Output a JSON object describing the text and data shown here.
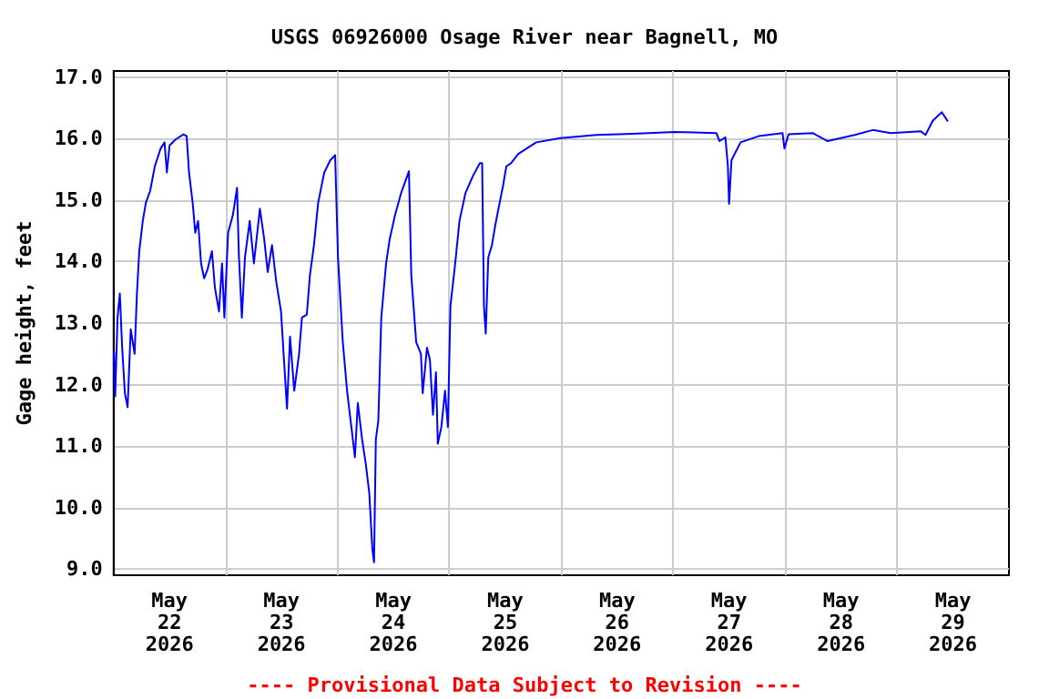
{
  "chart_data": {
    "type": "line",
    "title": "USGS 06926000 Osage River near Bagnell, MO",
    "ylabel": "Gage height, feet",
    "annotations": [
      "---- Provisional Data Subject to Revision ----"
    ],
    "xlim": [
      "2026-05-22T00:00",
      "2026-05-30T00:00"
    ],
    "ylim": [
      8.9,
      17.1
    ],
    "yticks": [
      {
        "value": 9,
        "label": "9.0"
      },
      {
        "value": 10,
        "label": "10.0"
      },
      {
        "value": 11,
        "label": "11.0"
      },
      {
        "value": 12,
        "label": "12.0"
      },
      {
        "value": 13,
        "label": "13.0"
      },
      {
        "value": 14,
        "label": "14.0"
      },
      {
        "value": 15,
        "label": "15.0"
      },
      {
        "value": 16,
        "label": "16.0"
      },
      {
        "value": 17,
        "label": "17.0"
      }
    ],
    "xticks": [
      {
        "value": "2026-05-23T00:00",
        "label": null
      },
      {
        "value": "2026-05-24T00:00",
        "label": null
      },
      {
        "value": "2026-05-25T00:00",
        "label": null
      },
      {
        "value": "2026-05-26T00:00",
        "label": null
      },
      {
        "value": "2026-05-27T00:00",
        "label": null
      },
      {
        "value": "2026-05-28T00:00",
        "label": null
      },
      {
        "value": "2026-05-29T00:00",
        "label": null
      },
      {
        "value": "2026-05-22T12:00",
        "label": "May\n22\n2026"
      },
      {
        "value": "2026-05-23T12:00",
        "label": "May\n23\n2026"
      },
      {
        "value": "2026-05-24T12:00",
        "label": "May\n24\n2026"
      },
      {
        "value": "2026-05-25T12:00",
        "label": "May\n25\n2026"
      },
      {
        "value": "2026-05-26T12:00",
        "label": "May\n26\n2026"
      },
      {
        "value": "2026-05-27T12:00",
        "label": "May\n27\n2026"
      },
      {
        "value": "2026-05-28T12:00",
        "label": "May\n28\n2026"
      },
      {
        "value": "2026-05-29T12:00",
        "label": "May\n29\n2026"
      }
    ],
    "grid": true,
    "marker": "none",
    "line_style": "solid",
    "series": [
      {
        "color": "#0000ff",
        "x": [
          "2026-05-22T00:05",
          "2026-05-22T00:20",
          "2026-05-22T00:50",
          "2026-05-22T01:20",
          "2026-05-22T01:50",
          "2026-05-22T02:25",
          "2026-05-22T03:00",
          "2026-05-22T03:40",
          "2026-05-22T04:30",
          "2026-05-22T05:00",
          "2026-05-22T05:30",
          "2026-05-22T06:15",
          "2026-05-22T06:55",
          "2026-05-22T07:50",
          "2026-05-22T08:50",
          "2026-05-22T10:05",
          "2026-05-22T10:55",
          "2026-05-22T11:25",
          "2026-05-22T12:00",
          "2026-05-22T13:20",
          "2026-05-22T15:00",
          "2026-05-22T15:40",
          "2026-05-22T16:10",
          "2026-05-22T16:57",
          "2026-05-22T17:30",
          "2026-05-22T18:07",
          "2026-05-22T18:45",
          "2026-05-22T19:25",
          "2026-05-22T20:10",
          "2026-05-22T21:05",
          "2026-05-22T21:43",
          "2026-05-22T22:36",
          "2026-05-22T23:15",
          "2026-05-22T23:45",
          "2026-05-23T00:33",
          "2026-05-23T01:35",
          "2026-05-23T02:28",
          "2026-05-23T02:51",
          "2026-05-23T03:30",
          "2026-05-23T04:10",
          "2026-05-23T05:11",
          "2026-05-23T06:05",
          "2026-05-23T07:22",
          "2026-05-23T08:17",
          "2026-05-23T09:03",
          "2026-05-23T09:58",
          "2026-05-23T10:52",
          "2026-05-23T11:54",
          "2026-05-23T12:32",
          "2026-05-23T13:11",
          "2026-05-23T13:50",
          "2026-05-23T14:44",
          "2026-05-23T15:46",
          "2026-05-23T16:23",
          "2026-05-23T17:26",
          "2026-05-23T18:06",
          "2026-05-23T18:58",
          "2026-05-23T19:52",
          "2026-05-23T21:10",
          "2026-05-23T22:28",
          "2026-05-23T23:30",
          "2026-05-24T00:07",
          "2026-05-24T01:09",
          "2026-05-24T02:04",
          "2026-05-24T02:59",
          "2026-05-24T03:45",
          "2026-05-24T04:22",
          "2026-05-24T05:17",
          "2026-05-24T06:04",
          "2026-05-24T06:50",
          "2026-05-24T07:28",
          "2026-05-24T07:51",
          "2026-05-24T08:14",
          "2026-05-24T08:46",
          "2026-05-24T09:24",
          "2026-05-24T10:26",
          "2026-05-24T11:13",
          "2026-05-24T12:22",
          "2026-05-24T13:38",
          "2026-05-24T15:20",
          "2026-05-24T15:50",
          "2026-05-24T16:53",
          "2026-05-24T17:54",
          "2026-05-24T18:17",
          "2026-05-24T19:12",
          "2026-05-24T19:50",
          "2026-05-24T20:29",
          "2026-05-24T21:08",
          "2026-05-24T21:31",
          "2026-05-24T22:17",
          "2026-05-24T23:04",
          "2026-05-24T23:41",
          "2026-05-25T00:14",
          "2026-05-25T01:15",
          "2026-05-25T02:10",
          "2026-05-25T03:26",
          "2026-05-25T05:06",
          "2026-05-25T06:32",
          "2026-05-25T07:02",
          "2026-05-25T07:25",
          "2026-05-25T07:48",
          "2026-05-25T08:21",
          "2026-05-25T09:08",
          "2026-05-25T09:53",
          "2026-05-25T11:33",
          "2026-05-25T12:13",
          "2026-05-25T13:13",
          "2026-05-25T14:46",
          "2026-05-25T18:38",
          "2026-05-25T23:49",
          "2026-05-26T07:32",
          "2026-05-26T15:16",
          "2026-05-27T00:16",
          "2026-05-27T09:16",
          "2026-05-27T09:56",
          "2026-05-27T11:12",
          "2026-05-27T11:44",
          "2026-05-27T11:59",
          "2026-05-27T12:30",
          "2026-05-27T14:27",
          "2026-05-27T18:19",
          "2026-05-27T23:27",
          "2026-05-27T23:51",
          "2026-05-28T00:45",
          "2026-05-28T05:54",
          "2026-05-28T09:07",
          "2026-05-28T14:56",
          "2026-05-28T18:48",
          "2026-05-28T22:39",
          "2026-05-29T05:07",
          "2026-05-29T06:07",
          "2026-05-29T07:39",
          "2026-05-29T09:36",
          "2026-05-29T10:54"
        ],
        "values": [
          12.55,
          11.81,
          13.09,
          13.48,
          12.6,
          11.86,
          11.63,
          12.9,
          12.5,
          13.48,
          14.17,
          14.66,
          14.96,
          15.15,
          15.55,
          15.84,
          15.94,
          15.45,
          15.89,
          15.99,
          16.07,
          16.04,
          15.45,
          14.96,
          14.47,
          14.66,
          13.97,
          13.73,
          13.88,
          14.17,
          13.58,
          13.19,
          13.97,
          13.09,
          14.47,
          14.76,
          15.2,
          14.12,
          13.09,
          14.07,
          14.66,
          13.97,
          14.86,
          14.37,
          13.83,
          14.27,
          13.68,
          13.19,
          12.4,
          11.61,
          12.78,
          11.9,
          12.5,
          13.09,
          13.14,
          13.78,
          14.27,
          14.96,
          15.45,
          15.65,
          15.73,
          14.07,
          12.69,
          11.9,
          11.31,
          10.82,
          11.7,
          11.11,
          10.72,
          10.23,
          9.34,
          9.11,
          11.11,
          11.41,
          13.09,
          13.97,
          14.37,
          14.76,
          15.11,
          15.47,
          13.78,
          12.69,
          12.5,
          11.86,
          12.6,
          12.4,
          11.51,
          12.2,
          11.04,
          11.31,
          11.9,
          11.31,
          13.28,
          13.97,
          14.66,
          15.11,
          15.4,
          15.6,
          15.6,
          13.28,
          12.83,
          14.07,
          14.27,
          14.61,
          15.25,
          15.55,
          15.6,
          15.75,
          15.94,
          16.01,
          16.06,
          16.08,
          16.11,
          16.09,
          15.96,
          16.02,
          15.55,
          14.94,
          15.65,
          15.94,
          16.04,
          16.09,
          15.84,
          16.07,
          16.09,
          15.96,
          16.06,
          16.14,
          16.09,
          16.12,
          16.06,
          16.29,
          16.43,
          16.28
        ]
      }
    ]
  }
}
